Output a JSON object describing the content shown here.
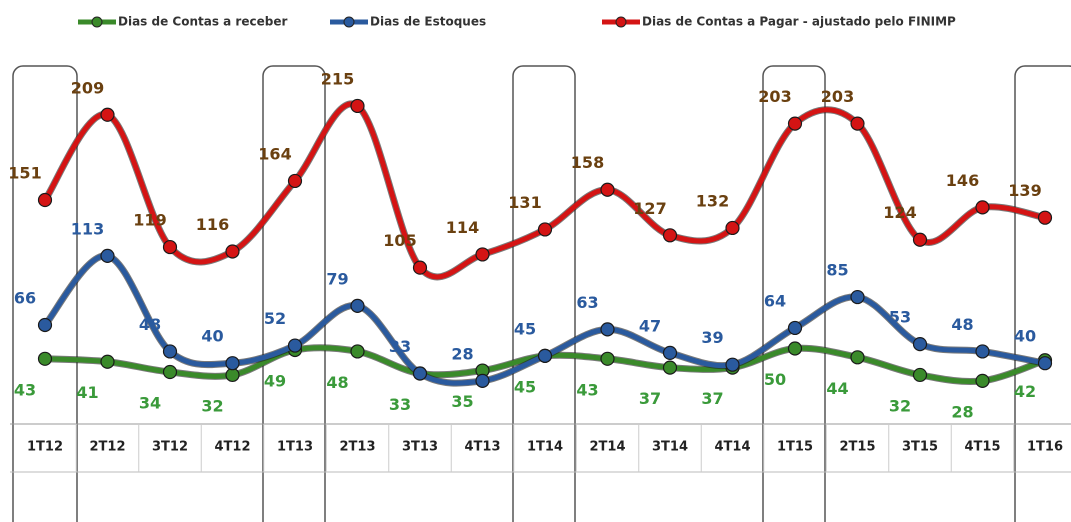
{
  "chart_data": {
    "type": "line",
    "categories": [
      "1T12",
      "2T12",
      "3T12",
      "4T12",
      "1T13",
      "2T13",
      "3T13",
      "4T13",
      "1T14",
      "2T14",
      "3T14",
      "4T14",
      "1T15",
      "2T15",
      "3T15",
      "4T15",
      "1T16"
    ],
    "series": [
      {
        "name": "Dias de Contas a receber",
        "color": "#3a8a2a",
        "values": [
          43,
          41,
          34,
          32,
          49,
          48,
          33,
          35,
          45,
          43,
          37,
          37,
          50,
          44,
          32,
          28,
          42
        ]
      },
      {
        "name": "Dias de Estoques",
        "color": "#2a5a9e",
        "values": [
          66,
          113,
          48,
          40,
          52,
          79,
          33,
          28,
          45,
          63,
          47,
          39,
          64,
          85,
          53,
          48,
          40
        ]
      },
      {
        "name": "Dias de Contas a Pagar - ajustado pelo FINIMP",
        "color": "#d41414",
        "values": [
          151,
          209,
          119,
          116,
          164,
          215,
          105,
          114,
          131,
          158,
          127,
          132,
          203,
          203,
          124,
          146,
          139
        ]
      }
    ]
  }
}
